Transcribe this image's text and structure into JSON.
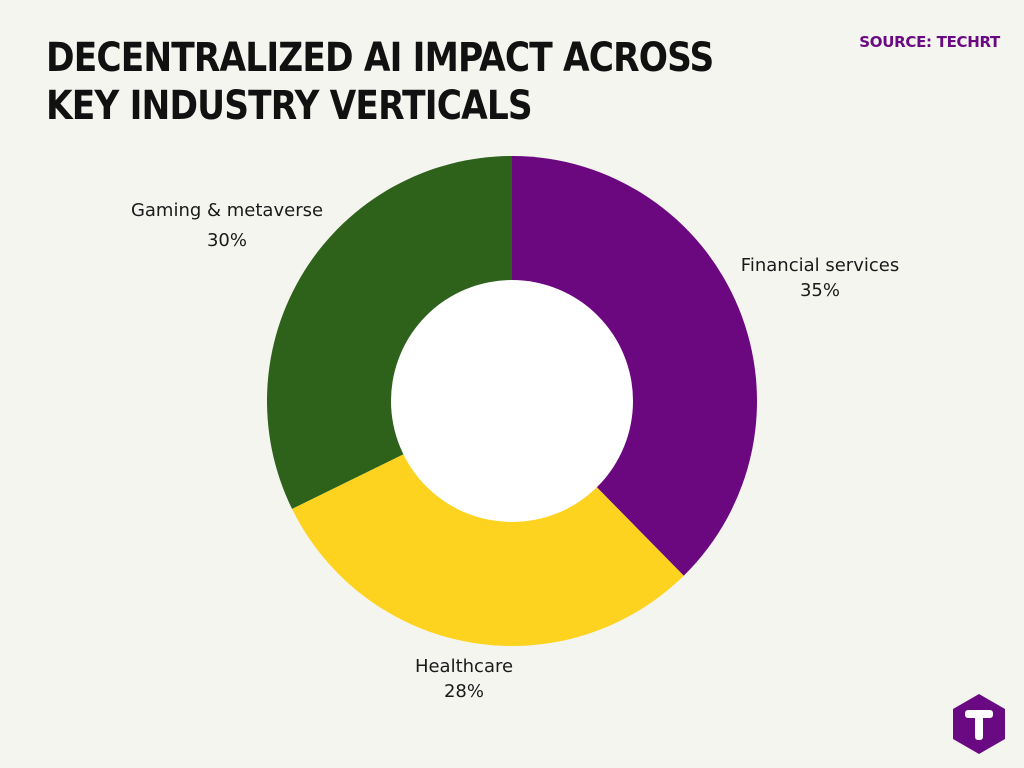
{
  "header": {
    "title": "DECENTRALIZED AI IMPACT ACROSS KEY INDUSTRY VERTICALS",
    "source": "SOURCE: TECHRT"
  },
  "logo": {
    "icon": "techrt-logo-icon",
    "color": "#6a0a82"
  },
  "chart_data": {
    "type": "pie",
    "title": "DECENTRALIZED AI IMPACT ACROSS KEY INDUSTRY VERTICALS",
    "donut": true,
    "categories": [
      "Financial services",
      "Healthcare",
      "Gaming & metaverse"
    ],
    "values": [
      35,
      28,
      30
    ],
    "value_labels": [
      "35%",
      "28%",
      "30%"
    ],
    "colors": [
      "#6b0880",
      "#fdd320",
      "#2e611a"
    ]
  }
}
